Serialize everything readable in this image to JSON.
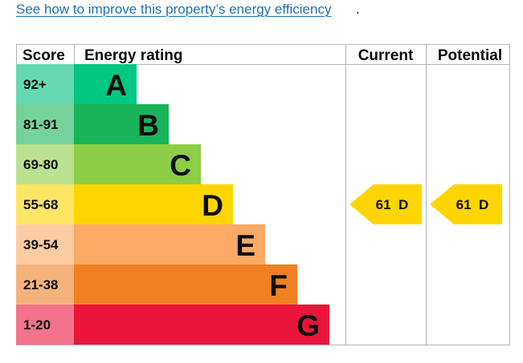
{
  "link": {
    "text": "See how to improve this property’s energy efficiency",
    "trailing": "."
  },
  "headers": {
    "score": "Score",
    "energy_rating": "Energy rating",
    "current": "Current",
    "potential": "Potential"
  },
  "bands": [
    {
      "score": "92+",
      "letter": "A",
      "color": "#00c781",
      "score_bg": "#66d9b3"
    },
    {
      "score": "81-91",
      "letter": "B",
      "color": "#19b459",
      "score_bg": "#75d29b"
    },
    {
      "score": "69-80",
      "letter": "C",
      "color": "#8dce46",
      "score_bg": "#bbe290"
    },
    {
      "score": "55-68",
      "letter": "D",
      "color": "#ffd500",
      "score_bg": "#ffe566"
    },
    {
      "score": "39-54",
      "letter": "E",
      "color": "#fcaa65",
      "score_bg": "#fdcca3"
    },
    {
      "score": "21-38",
      "letter": "F",
      "color": "#ef8023",
      "score_bg": "#f5b37b"
    },
    {
      "score": "1-20",
      "letter": "G",
      "color": "#e9153b",
      "score_bg": "#f2738a"
    }
  ],
  "current": {
    "value": "61",
    "band": "D",
    "label": "61  D",
    "color": "#ffd500"
  },
  "potential": {
    "value": "61",
    "band": "D",
    "label": "61  D",
    "color": "#ffd500"
  }
}
